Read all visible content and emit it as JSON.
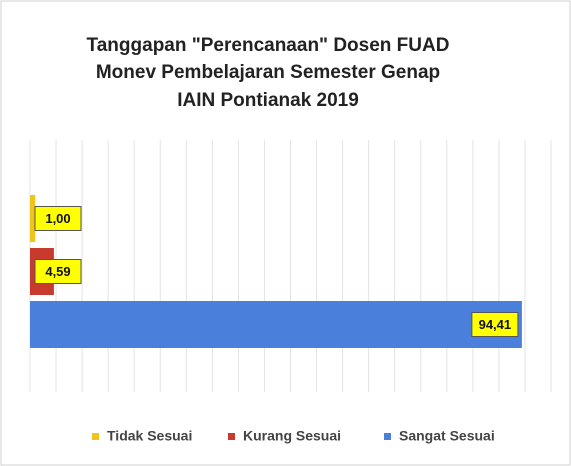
{
  "chart_data": {
    "type": "bar",
    "orientation": "horizontal",
    "title": [
      "Tanggapan \"Perencanaan\" Dosen FUAD",
      "Monev Pembelajaran Semester Genap",
      "IAIN Pontianak 2019"
    ],
    "series": [
      {
        "name": "Tidak Sesuai",
        "color": "#f0c419",
        "values": [
          1.0
        ],
        "value_labels": [
          "1,00"
        ]
      },
      {
        "name": "Kurang Sesuai",
        "color": "#c83a2e",
        "values": [
          4.59
        ],
        "value_labels": [
          "4,59"
        ]
      },
      {
        "name": "Sangat Sesuai",
        "color": "#4a7fdc",
        "values": [
          94.41
        ],
        "value_labels": [
          "94,41"
        ]
      }
    ],
    "xlim": [
      0,
      100
    ],
    "xticks": [
      0,
      5,
      10,
      15,
      20,
      25,
      30,
      35,
      40,
      45,
      50,
      55,
      60,
      65,
      70,
      75,
      80,
      85,
      90,
      95,
      100
    ],
    "grid": true,
    "legend": "bottom"
  }
}
